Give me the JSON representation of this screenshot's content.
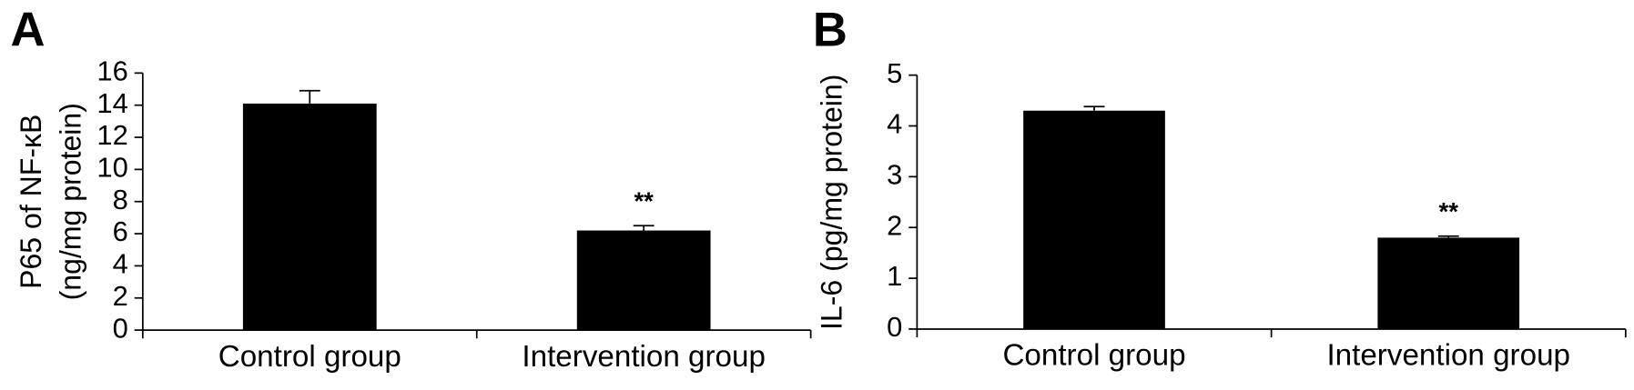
{
  "chart_data": [
    {
      "type": "bar",
      "panel_label": "A",
      "ylabel": [
        "P65 of NF-κB",
        "(ng/mg protein)"
      ],
      "categories": [
        "Control group",
        "Intervention group"
      ],
      "values": [
        14.1,
        6.2
      ],
      "errors": [
        0.8,
        0.3
      ],
      "significance_labels": [
        null,
        "**"
      ],
      "color": "#000000",
      "ylim": [
        0,
        16
      ],
      "yticks": [
        0,
        2,
        4,
        6,
        8,
        10,
        12,
        14,
        16
      ]
    },
    {
      "type": "bar",
      "panel_label": "B",
      "ylabel": [
        "IL-6 (pg/mg protein)"
      ],
      "categories": [
        "Control group",
        "Intervention group"
      ],
      "values": [
        4.3,
        1.8
      ],
      "errors": [
        0.08,
        0.03
      ],
      "significance_labels": [
        null,
        "**"
      ],
      "color": "#000000",
      "ylim": [
        0,
        5
      ],
      "yticks": [
        0,
        1,
        2,
        3,
        4,
        5
      ]
    }
  ]
}
